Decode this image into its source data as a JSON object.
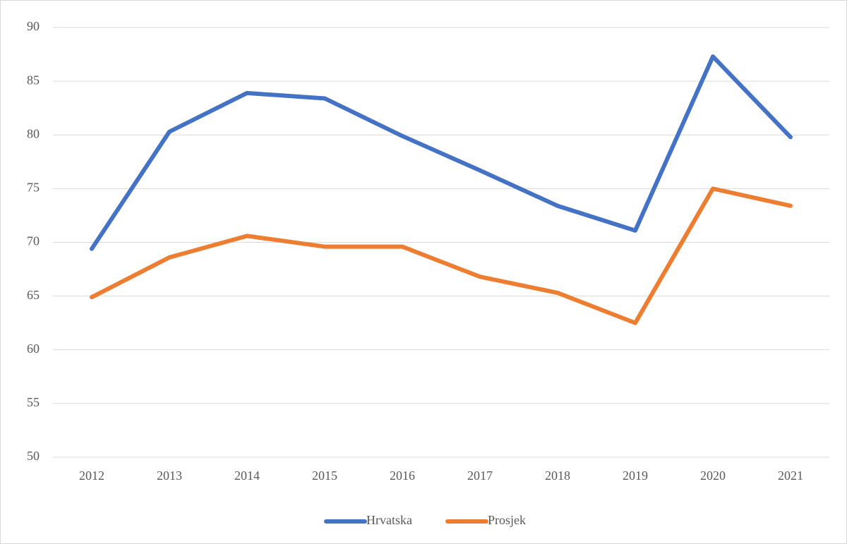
{
  "chart_data": {
    "type": "line",
    "categories": [
      "2012",
      "2013",
      "2014",
      "2015",
      "2016",
      "2017",
      "2018",
      "2019",
      "2020",
      "2021"
    ],
    "series": [
      {
        "name": "Hrvatska",
        "color": "#4472c4",
        "values": [
          69.4,
          80.3,
          83.9,
          83.4,
          79.9,
          76.7,
          73.4,
          71.1,
          87.3,
          79.8
        ]
      },
      {
        "name": "Prosjek",
        "color": "#ed7d31",
        "values": [
          64.9,
          68.6,
          70.6,
          69.6,
          69.6,
          66.8,
          65.3,
          62.5,
          75.0,
          73.4
        ]
      }
    ],
    "ylim": [
      50,
      90
    ],
    "yticks": [
      50,
      55,
      60,
      65,
      70,
      75,
      80,
      85,
      90
    ],
    "grid": true,
    "legend": "bottom"
  }
}
